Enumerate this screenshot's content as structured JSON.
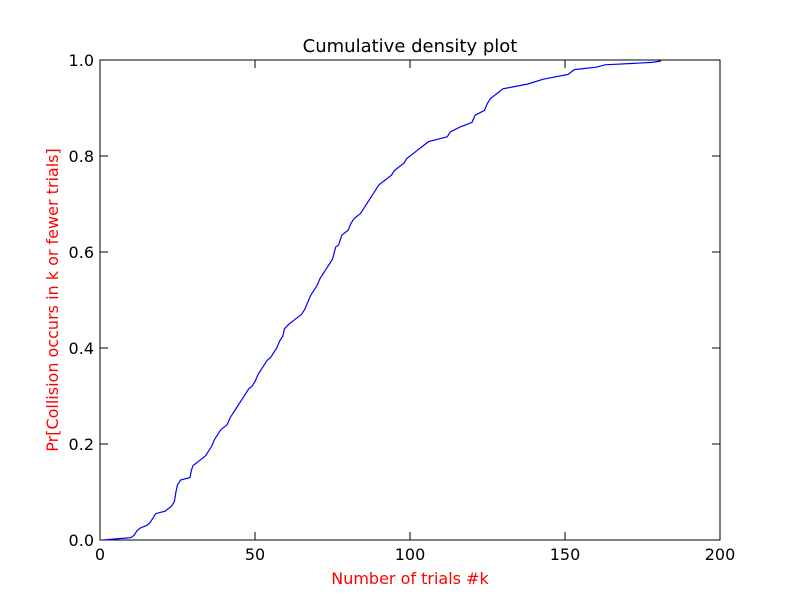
{
  "chart_data": {
    "type": "line",
    "title": "Cumulative density plot",
    "xlabel": "Number of trials #k",
    "ylabel": "Pr[Collision occurs in k or fewer trials]",
    "xlim": [
      0,
      200
    ],
    "ylim": [
      0,
      1.0
    ],
    "xticks": [
      "0",
      "50",
      "100",
      "150",
      "200"
    ],
    "yticks": [
      "0.0",
      "0.2",
      "0.4",
      "0.6",
      "0.8",
      "1.0"
    ],
    "grid": false,
    "legend": "none",
    "colors": {
      "line": "#0000ff",
      "axis_label": "#ff0000",
      "frame": "#000000"
    },
    "series": [
      {
        "values": [
          [
            1,
            0.0
          ],
          [
            10,
            0.005
          ],
          [
            11,
            0.01
          ],
          [
            12,
            0.02
          ],
          [
            13,
            0.025
          ],
          [
            15,
            0.03
          ],
          [
            16,
            0.035
          ],
          [
            17,
            0.045
          ],
          [
            18,
            0.055
          ],
          [
            21,
            0.06
          ],
          [
            23,
            0.07
          ],
          [
            24,
            0.08
          ],
          [
            24.5,
            0.1
          ],
          [
            25,
            0.115
          ],
          [
            26,
            0.125
          ],
          [
            29,
            0.13
          ],
          [
            29.5,
            0.145
          ],
          [
            30,
            0.155
          ],
          [
            32,
            0.165
          ],
          [
            34,
            0.175
          ],
          [
            35,
            0.185
          ],
          [
            36,
            0.195
          ],
          [
            37,
            0.21
          ],
          [
            38,
            0.22
          ],
          [
            39,
            0.23
          ],
          [
            41,
            0.24
          ],
          [
            42,
            0.255
          ],
          [
            43,
            0.265
          ],
          [
            44,
            0.275
          ],
          [
            45,
            0.285
          ],
          [
            46,
            0.295
          ],
          [
            47,
            0.305
          ],
          [
            48,
            0.315
          ],
          [
            49,
            0.32
          ],
          [
            50,
            0.33
          ],
          [
            51,
            0.345
          ],
          [
            52,
            0.355
          ],
          [
            53,
            0.365
          ],
          [
            54,
            0.375
          ],
          [
            55,
            0.38
          ],
          [
            56,
            0.39
          ],
          [
            57,
            0.4
          ],
          [
            58,
            0.415
          ],
          [
            59,
            0.425
          ],
          [
            59.5,
            0.44
          ],
          [
            61,
            0.45
          ],
          [
            63,
            0.46
          ],
          [
            65,
            0.47
          ],
          [
            66,
            0.48
          ],
          [
            67,
            0.495
          ],
          [
            68,
            0.51
          ],
          [
            69,
            0.52
          ],
          [
            70,
            0.53
          ],
          [
            71,
            0.545
          ],
          [
            72,
            0.555
          ],
          [
            73,
            0.565
          ],
          [
            74,
            0.575
          ],
          [
            75,
            0.585
          ],
          [
            76,
            0.61
          ],
          [
            77,
            0.615
          ],
          [
            78,
            0.635
          ],
          [
            80,
            0.645
          ],
          [
            81,
            0.66
          ],
          [
            82,
            0.67
          ],
          [
            84,
            0.68
          ],
          [
            85,
            0.69
          ],
          [
            86,
            0.7
          ],
          [
            87,
            0.71
          ],
          [
            88,
            0.72
          ],
          [
            89,
            0.73
          ],
          [
            90,
            0.74
          ],
          [
            92,
            0.75
          ],
          [
            94,
            0.76
          ],
          [
            95,
            0.77
          ],
          [
            97,
            0.78
          ],
          [
            98,
            0.785
          ],
          [
            99,
            0.795
          ],
          [
            100,
            0.8
          ],
          [
            102,
            0.81
          ],
          [
            104,
            0.82
          ],
          [
            106,
            0.83
          ],
          [
            109,
            0.835
          ],
          [
            112,
            0.84
          ],
          [
            113,
            0.85
          ],
          [
            116,
            0.86
          ],
          [
            118,
            0.865
          ],
          [
            120,
            0.87
          ],
          [
            121,
            0.885
          ],
          [
            124,
            0.895
          ],
          [
            125,
            0.91
          ],
          [
            126,
            0.92
          ],
          [
            128,
            0.93
          ],
          [
            130,
            0.94
          ],
          [
            138,
            0.95
          ],
          [
            143,
            0.96
          ],
          [
            147,
            0.965
          ],
          [
            151,
            0.97
          ],
          [
            153,
            0.98
          ],
          [
            160,
            0.985
          ],
          [
            163,
            0.99
          ],
          [
            172,
            0.993
          ],
          [
            178,
            0.995
          ],
          [
            181,
            0.998
          ]
        ]
      }
    ]
  }
}
